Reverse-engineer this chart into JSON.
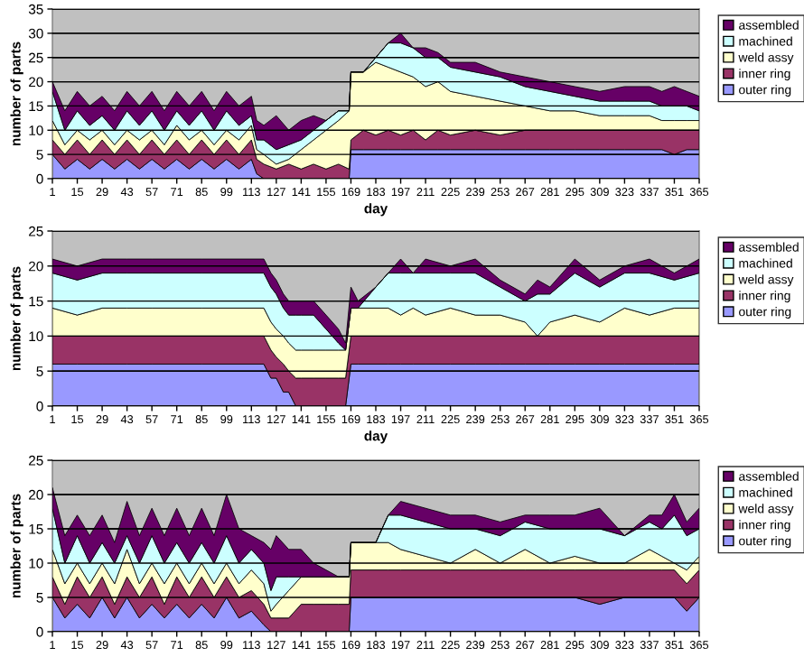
{
  "chart_data": [
    {
      "type": "area",
      "stacked": true,
      "xlabel": "day",
      "ylabel": "number of parts",
      "xlim": [
        1,
        365
      ],
      "xticks": [
        1,
        15,
        29,
        43,
        57,
        71,
        85,
        99,
        113,
        127,
        141,
        155,
        169,
        183,
        197,
        211,
        225,
        239,
        253,
        267,
        281,
        295,
        309,
        323,
        337,
        351,
        365
      ],
      "ylim": [
        0,
        35
      ],
      "yticks": [
        0,
        5,
        10,
        15,
        20,
        25,
        30,
        35
      ],
      "grid": "y",
      "legend": "right",
      "x": [
        1,
        8,
        15,
        22,
        29,
        36,
        43,
        50,
        57,
        64,
        71,
        78,
        85,
        92,
        99,
        106,
        113,
        116,
        120,
        127,
        134,
        141,
        148,
        155,
        162,
        168,
        169,
        176,
        183,
        190,
        197,
        204,
        211,
        218,
        225,
        239,
        253,
        267,
        281,
        295,
        309,
        323,
        337,
        344,
        351,
        358,
        365
      ],
      "series": [
        {
          "name": "outer ring",
          "color": "#9999ff",
          "values": [
            5,
            2,
            4,
            2,
            4,
            2,
            4,
            2,
            4,
            2,
            4,
            2,
            4,
            2,
            4,
            2,
            4,
            1,
            0,
            0,
            0,
            0,
            0,
            0,
            0,
            0,
            6,
            6,
            6,
            6,
            6,
            6,
            6,
            6,
            6,
            6,
            6,
            6,
            6,
            6,
            6,
            6,
            6,
            6,
            5,
            6,
            6
          ]
        },
        {
          "name": "inner ring",
          "color": "#993366",
          "values": [
            3,
            3,
            4,
            3,
            4,
            3,
            4,
            3,
            4,
            3,
            4,
            3,
            4,
            3,
            4,
            3,
            4,
            3,
            3,
            2,
            3,
            2,
            3,
            2,
            3,
            2,
            2,
            4,
            3,
            4,
            3,
            4,
            2,
            4,
            3,
            4,
            3,
            4,
            4,
            4,
            4,
            4,
            4,
            4,
            5,
            4,
            4
          ]
        },
        {
          "name": "weld assy",
          "color": "#ffffcc",
          "values": [
            4,
            2,
            2,
            3,
            2,
            2,
            2,
            3,
            2,
            2,
            3,
            3,
            2,
            2,
            2,
            3,
            3,
            2,
            2,
            1,
            1,
            4,
            5,
            8,
            9,
            12,
            14,
            12,
            15,
            13,
            13,
            11,
            11,
            10,
            9,
            7,
            7,
            5,
            4,
            4,
            3,
            3,
            3,
            2,
            2,
            2,
            2
          ]
        },
        {
          "name": "machined",
          "color": "#ccffff",
          "values": [
            6,
            3,
            4,
            3,
            3,
            3,
            4,
            3,
            4,
            3,
            3,
            3,
            4,
            3,
            4,
            3,
            2,
            2,
            3,
            3,
            3,
            2,
            2,
            2,
            2,
            0,
            0,
            0,
            1,
            5,
            6,
            6,
            6,
            5,
            5,
            5,
            5,
            4,
            4,
            3,
            3,
            3,
            3,
            3,
            3,
            3,
            2
          ]
        },
        {
          "name": "assembled",
          "color": "#660066",
          "values": [
            2,
            4,
            4,
            4,
            4,
            4,
            4,
            4,
            4,
            4,
            4,
            4,
            4,
            4,
            4,
            4,
            4,
            4,
            3,
            7,
            3,
            4,
            3,
            0,
            0,
            0,
            0,
            0,
            0,
            0,
            2,
            0,
            2,
            1,
            1,
            2,
            1,
            2,
            2,
            2,
            2,
            3,
            3,
            3,
            4,
            3,
            3
          ]
        }
      ]
    },
    {
      "type": "area",
      "stacked": true,
      "xlabel": "day",
      "ylabel": "number of parts",
      "xlim": [
        1,
        365
      ],
      "xticks": [
        1,
        15,
        29,
        43,
        57,
        71,
        85,
        99,
        113,
        127,
        141,
        155,
        169,
        183,
        197,
        211,
        225,
        239,
        253,
        267,
        281,
        295,
        309,
        323,
        337,
        351,
        365
      ],
      "ylim": [
        0,
        25
      ],
      "yticks": [
        0,
        5,
        10,
        15,
        20,
        25
      ],
      "grid": "y",
      "legend": "right",
      "x": [
        1,
        15,
        29,
        43,
        57,
        85,
        120,
        124,
        127,
        131,
        134,
        138,
        141,
        148,
        155,
        162,
        166,
        169,
        173,
        183,
        190,
        197,
        204,
        211,
        225,
        239,
        253,
        267,
        274,
        281,
        295,
        309,
        323,
        337,
        351,
        365
      ],
      "series": [
        {
          "name": "outer ring",
          "color": "#9999ff",
          "values": [
            6,
            6,
            6,
            6,
            6,
            6,
            6,
            4,
            4,
            2,
            2,
            0,
            0,
            0,
            0,
            0,
            0,
            6,
            6,
            6,
            6,
            6,
            6,
            6,
            6,
            6,
            6,
            6,
            6,
            6,
            6,
            6,
            6,
            6,
            6,
            6
          ]
        },
        {
          "name": "inner ring",
          "color": "#993366",
          "values": [
            4,
            4,
            4,
            4,
            4,
            4,
            4,
            4,
            3,
            4,
            3,
            4,
            4,
            4,
            4,
            4,
            4,
            4,
            4,
            4,
            4,
            4,
            4,
            4,
            4,
            4,
            4,
            4,
            4,
            4,
            4,
            4,
            4,
            4,
            4,
            4
          ]
        },
        {
          "name": "weld assy",
          "color": "#ffffcc",
          "values": [
            4,
            3,
            4,
            4,
            4,
            4,
            4,
            4,
            4,
            4,
            4,
            4,
            4,
            4,
            4,
            4,
            4,
            4,
            4,
            4,
            4,
            3,
            4,
            3,
            4,
            3,
            3,
            2,
            0,
            2,
            3,
            2,
            4,
            3,
            4,
            4
          ]
        },
        {
          "name": "machined",
          "color": "#ccffff",
          "values": [
            5,
            5,
            5,
            5,
            5,
            5,
            5,
            5,
            5,
            4,
            4,
            5,
            5,
            5,
            3,
            1,
            0,
            0,
            0,
            3,
            5,
            6,
            5,
            6,
            5,
            6,
            4,
            3,
            6,
            4,
            6,
            5,
            5,
            6,
            4,
            5
          ]
        },
        {
          "name": "assembled",
          "color": "#660066",
          "values": [
            2,
            2,
            2,
            2,
            2,
            2,
            2,
            2,
            2,
            2,
            2,
            2,
            2,
            2,
            2,
            2,
            1,
            3,
            1,
            0,
            0,
            2,
            0,
            2,
            1,
            2,
            1,
            1,
            2,
            1,
            2,
            1,
            1,
            2,
            1,
            2
          ]
        }
      ]
    },
    {
      "type": "area",
      "stacked": true,
      "ylabel": "number of parts",
      "xlim": [
        1,
        365
      ],
      "xticks": [
        1,
        15,
        29,
        43,
        57,
        71,
        85,
        99,
        113,
        127,
        141,
        155,
        169,
        183,
        197,
        211,
        225,
        239,
        253,
        267,
        281,
        295,
        309,
        323,
        337,
        351,
        365
      ],
      "ylim": [
        0,
        25
      ],
      "yticks": [
        0,
        5,
        10,
        15,
        20,
        25
      ],
      "grid": "y",
      "legend": "right",
      "x": [
        1,
        8,
        15,
        22,
        29,
        36,
        43,
        50,
        57,
        64,
        71,
        78,
        85,
        92,
        99,
        106,
        113,
        120,
        124,
        127,
        134,
        141,
        148,
        155,
        162,
        168,
        169,
        183,
        190,
        197,
        211,
        225,
        239,
        253,
        267,
        281,
        295,
        309,
        323,
        337,
        344,
        351,
        358,
        365
      ],
      "series": [
        {
          "name": "outer ring",
          "color": "#9999ff",
          "values": [
            5,
            2,
            4,
            2,
            5,
            2,
            5,
            2,
            4,
            2,
            4,
            2,
            4,
            2,
            5,
            2,
            3,
            1,
            0,
            0,
            0,
            0,
            0,
            0,
            0,
            0,
            5,
            5,
            5,
            5,
            5,
            5,
            5,
            5,
            5,
            5,
            5,
            4,
            5,
            5,
            5,
            5,
            3,
            5
          ]
        },
        {
          "name": "inner ring",
          "color": "#993366",
          "values": [
            3,
            2,
            4,
            3,
            3,
            2,
            3,
            3,
            4,
            2,
            4,
            3,
            4,
            3,
            3,
            3,
            3,
            3,
            2,
            2,
            2,
            4,
            4,
            4,
            4,
            4,
            4,
            4,
            4,
            4,
            4,
            4,
            4,
            4,
            4,
            4,
            4,
            5,
            4,
            4,
            4,
            4,
            4,
            4
          ]
        },
        {
          "name": "weld assy",
          "color": "#ffffcc",
          "values": [
            4,
            3,
            2,
            2,
            2,
            3,
            4,
            2,
            2,
            3,
            2,
            2,
            2,
            2,
            2,
            2,
            3,
            3,
            1,
            2,
            4,
            4,
            4,
            4,
            4,
            4,
            4,
            4,
            4,
            3,
            2,
            1,
            3,
            1,
            3,
            1,
            2,
            1,
            1,
            3,
            2,
            1,
            2,
            2
          ]
        },
        {
          "name": "machined",
          "color": "#ccffff",
          "values": [
            6,
            3,
            4,
            3,
            3,
            3,
            2,
            3,
            4,
            3,
            3,
            3,
            3,
            3,
            4,
            3,
            3,
            3,
            3,
            4,
            2,
            0,
            0,
            0,
            0,
            0,
            0,
            0,
            4,
            5,
            5,
            5,
            3,
            4,
            4,
            5,
            4,
            5,
            4,
            4,
            4,
            7,
            5,
            4
          ]
        },
        {
          "name": "assembled",
          "color": "#660066",
          "values": [
            3,
            4,
            3,
            4,
            4,
            3,
            5,
            4,
            4,
            4,
            5,
            4,
            5,
            4,
            6,
            5,
            2,
            3,
            6,
            6,
            4,
            4,
            2,
            1,
            0,
            0,
            0,
            0,
            0,
            2,
            2,
            2,
            2,
            2,
            1,
            2,
            2,
            3,
            0,
            1,
            2,
            3,
            2,
            3
          ]
        }
      ]
    }
  ]
}
